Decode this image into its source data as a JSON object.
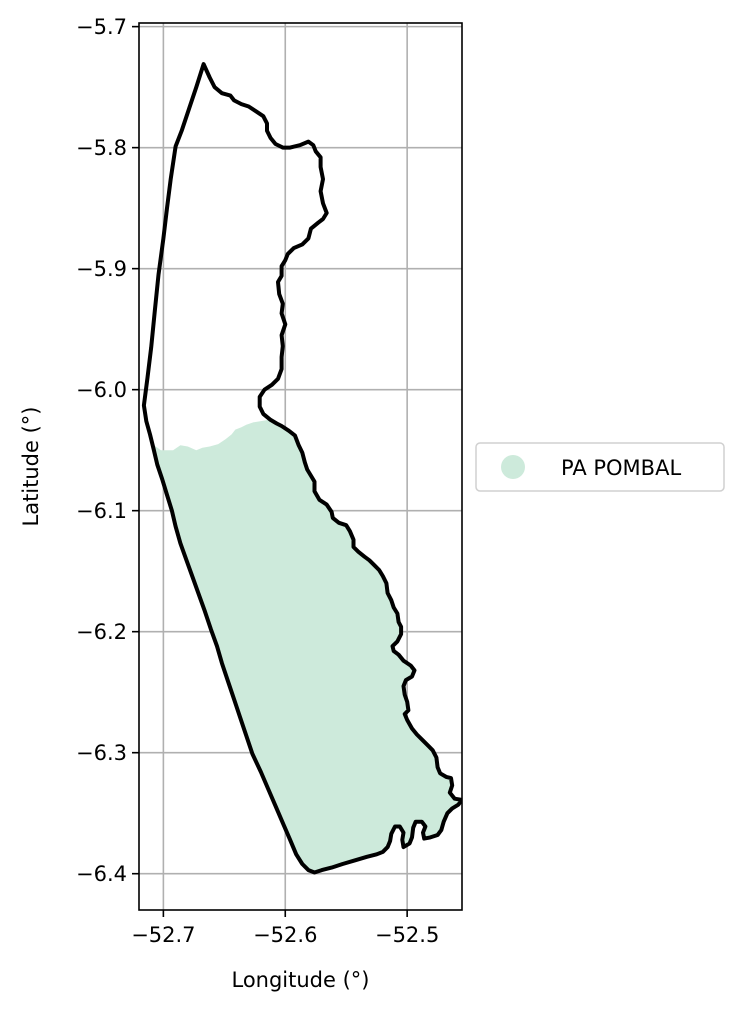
{
  "chart_data": {
    "type": "map",
    "xlabel": "Longitude (°)",
    "ylabel": "Latitude (°)",
    "xlim": [
      -52.72,
      -52.455
    ],
    "ylim": [
      -6.43,
      -5.697
    ],
    "grid": true,
    "x_ticks": [
      {
        "value": -52.7,
        "label": "−52.7"
      },
      {
        "value": -52.6,
        "label": "−52.6"
      },
      {
        "value": -52.5,
        "label": "−52.5"
      }
    ],
    "y_ticks": [
      {
        "value": -5.7,
        "label": "−5.7"
      },
      {
        "value": -5.8,
        "label": "−5.8"
      },
      {
        "value": -5.9,
        "label": "−5.9"
      },
      {
        "value": -6.0,
        "label": "−6.0"
      },
      {
        "value": -6.1,
        "label": "−6.1"
      },
      {
        "value": -6.2,
        "label": "−6.2"
      },
      {
        "value": -6.3,
        "label": "−6.3"
      },
      {
        "value": -6.4,
        "label": "−6.4"
      }
    ],
    "legend": {
      "placement": "center-right-outside",
      "entries": [
        {
          "label": "PA POMBAL",
          "color": "#cdeadb",
          "marker": "circle"
        }
      ]
    },
    "boundary": {
      "color": "#000000",
      "coords": [
        [
          -52.667,
          -5.731
        ],
        [
          -52.662,
          -5.742
        ],
        [
          -52.658,
          -5.75
        ],
        [
          -52.652,
          -5.755
        ],
        [
          -52.645,
          -5.757
        ],
        [
          -52.642,
          -5.761
        ],
        [
          -52.636,
          -5.764
        ],
        [
          -52.63,
          -5.766
        ],
        [
          -52.624,
          -5.77
        ],
        [
          -52.618,
          -5.774
        ],
        [
          -52.615,
          -5.78
        ],
        [
          -52.615,
          -5.786
        ],
        [
          -52.612,
          -5.792
        ],
        [
          -52.608,
          -5.797
        ],
        [
          -52.602,
          -5.8
        ],
        [
          -52.596,
          -5.8
        ],
        [
          -52.588,
          -5.798
        ],
        [
          -52.581,
          -5.795
        ],
        [
          -52.577,
          -5.798
        ],
        [
          -52.575,
          -5.803
        ],
        [
          -52.571,
          -5.808
        ],
        [
          -52.571,
          -5.816
        ],
        [
          -52.569,
          -5.826
        ],
        [
          -52.571,
          -5.836
        ],
        [
          -52.569,
          -5.846
        ],
        [
          -52.566,
          -5.854
        ],
        [
          -52.569,
          -5.859
        ],
        [
          -52.573,
          -5.862
        ],
        [
          -52.579,
          -5.867
        ],
        [
          -52.581,
          -5.875
        ],
        [
          -52.586,
          -5.88
        ],
        [
          -52.593,
          -5.883
        ],
        [
          -52.598,
          -5.888
        ],
        [
          -52.6,
          -5.893
        ],
        [
          -52.603,
          -5.898
        ],
        [
          -52.603,
          -5.906
        ],
        [
          -52.606,
          -5.911
        ],
        [
          -52.605,
          -5.921
        ],
        [
          -52.602,
          -5.929
        ],
        [
          -52.603,
          -5.937
        ],
        [
          -52.6,
          -5.946
        ],
        [
          -52.603,
          -5.955
        ],
        [
          -52.602,
          -5.964
        ],
        [
          -52.603,
          -5.973
        ],
        [
          -52.603,
          -5.983
        ],
        [
          -52.606,
          -5.991
        ],
        [
          -52.611,
          -5.996
        ],
        [
          -52.617,
          -6.0
        ],
        [
          -52.621,
          -6.006
        ],
        [
          -52.621,
          -6.014
        ],
        [
          -52.618,
          -6.02
        ],
        [
          -52.612,
          -6.025
        ],
        [
          -52.607,
          -6.028
        ],
        [
          -52.603,
          -6.03
        ],
        [
          -52.597,
          -6.034
        ],
        [
          -52.592,
          -6.038
        ],
        [
          -52.589,
          -6.046
        ],
        [
          -52.586,
          -6.052
        ],
        [
          -52.584,
          -6.06
        ],
        [
          -52.582,
          -6.066
        ],
        [
          -52.579,
          -6.071
        ],
        [
          -52.576,
          -6.076
        ],
        [
          -52.576,
          -6.084
        ],
        [
          -52.572,
          -6.091
        ],
        [
          -52.566,
          -6.095
        ],
        [
          -52.562,
          -6.101
        ],
        [
          -52.561,
          -6.106
        ],
        [
          -52.556,
          -6.11
        ],
        [
          -52.55,
          -6.112
        ],
        [
          -52.547,
          -6.117
        ],
        [
          -52.544,
          -6.124
        ],
        [
          -52.544,
          -6.13
        ],
        [
          -52.54,
          -6.134
        ],
        [
          -52.535,
          -6.138
        ],
        [
          -52.531,
          -6.141
        ],
        [
          -52.527,
          -6.145
        ],
        [
          -52.523,
          -6.149
        ],
        [
          -52.52,
          -6.154
        ],
        [
          -52.517,
          -6.16
        ],
        [
          -52.516,
          -6.168
        ],
        [
          -52.513,
          -6.174
        ],
        [
          -52.511,
          -6.18
        ],
        [
          -52.508,
          -6.185
        ],
        [
          -52.507,
          -6.192
        ],
        [
          -52.505,
          -6.196
        ],
        [
          -52.505,
          -6.202
        ],
        [
          -52.508,
          -6.208
        ],
        [
          -52.512,
          -6.212
        ],
        [
          -52.511,
          -6.216
        ],
        [
          -52.507,
          -6.219
        ],
        [
          -52.503,
          -6.224
        ],
        [
          -52.497,
          -6.228
        ],
        [
          -52.494,
          -6.232
        ],
        [
          -52.496,
          -6.237
        ],
        [
          -52.501,
          -6.24
        ],
        [
          -52.503,
          -6.245
        ],
        [
          -52.502,
          -6.252
        ],
        [
          -52.5,
          -6.258
        ],
        [
          -52.499,
          -6.265
        ],
        [
          -52.502,
          -6.268
        ],
        [
          -52.5,
          -6.273
        ],
        [
          -52.496,
          -6.28
        ],
        [
          -52.492,
          -6.285
        ],
        [
          -52.487,
          -6.29
        ],
        [
          -52.483,
          -6.294
        ],
        [
          -52.479,
          -6.298
        ],
        [
          -52.476,
          -6.304
        ],
        [
          -52.475,
          -6.312
        ],
        [
          -52.473,
          -6.317
        ],
        [
          -52.468,
          -6.32
        ],
        [
          -52.464,
          -6.321
        ],
        [
          -52.463,
          -6.327
        ],
        [
          -52.465,
          -6.333
        ],
        [
          -52.461,
          -6.338
        ],
        [
          -52.455,
          -6.339
        ],
        [
          -52.458,
          -6.343
        ],
        [
          -52.463,
          -6.346
        ],
        [
          -52.467,
          -6.35
        ],
        [
          -52.47,
          -6.357
        ],
        [
          -52.472,
          -6.364
        ],
        [
          -52.475,
          -6.368
        ],
        [
          -52.481,
          -6.37
        ],
        [
          -52.486,
          -6.371
        ],
        [
          -52.487,
          -6.366
        ],
        [
          -52.485,
          -6.361
        ],
        [
          -52.488,
          -6.357
        ],
        [
          -52.493,
          -6.357
        ],
        [
          -52.495,
          -6.362
        ],
        [
          -52.496,
          -6.37
        ],
        [
          -52.498,
          -6.375
        ],
        [
          -52.503,
          -6.378
        ],
        [
          -52.504,
          -6.372
        ],
        [
          -52.503,
          -6.366
        ],
        [
          -52.506,
          -6.361
        ],
        [
          -52.51,
          -6.361
        ],
        [
          -52.513,
          -6.367
        ],
        [
          -52.514,
          -6.373
        ],
        [
          -52.516,
          -6.378
        ],
        [
          -52.52,
          -6.382
        ],
        [
          -52.525,
          -6.384
        ],
        [
          -52.533,
          -6.386
        ],
        [
          -52.543,
          -6.389
        ],
        [
          -52.553,
          -6.392
        ],
        [
          -52.562,
          -6.395
        ],
        [
          -52.57,
          -6.397
        ],
        [
          -52.576,
          -6.399
        ],
        [
          -52.581,
          -6.397
        ],
        [
          -52.586,
          -6.392
        ],
        [
          -52.591,
          -6.384
        ],
        [
          -52.596,
          -6.372
        ],
        [
          -52.602,
          -6.358
        ],
        [
          -52.608,
          -6.344
        ],
        [
          -52.614,
          -6.33
        ],
        [
          -52.62,
          -6.316
        ],
        [
          -52.627,
          -6.301
        ],
        [
          -52.632,
          -6.286
        ],
        [
          -52.637,
          -6.271
        ],
        [
          -52.642,
          -6.256
        ],
        [
          -52.647,
          -6.241
        ],
        [
          -52.652,
          -6.226
        ],
        [
          -52.656,
          -6.212
        ],
        [
          -52.661,
          -6.198
        ],
        [
          -52.666,
          -6.183
        ],
        [
          -52.671,
          -6.169
        ],
        [
          -52.676,
          -6.155
        ],
        [
          -52.681,
          -6.141
        ],
        [
          -52.686,
          -6.127
        ],
        [
          -52.69,
          -6.113
        ],
        [
          -52.693,
          -6.1
        ],
        [
          -52.697,
          -6.087
        ],
        [
          -52.701,
          -6.074
        ],
        [
          -52.705,
          -6.062
        ],
        [
          -52.708,
          -6.049
        ],
        [
          -52.711,
          -6.037
        ],
        [
          -52.714,
          -6.026
        ],
        [
          -52.716,
          -6.013
        ],
        [
          -52.713,
          -5.99
        ],
        [
          -52.71,
          -5.965
        ],
        [
          -52.707,
          -5.935
        ],
        [
          -52.704,
          -5.905
        ],
        [
          -52.7,
          -5.875
        ],
        [
          -52.697,
          -5.85
        ],
        [
          -52.694,
          -5.826
        ],
        [
          -52.69,
          -5.799
        ],
        [
          -52.685,
          -5.786
        ],
        [
          -52.679,
          -5.768
        ],
        [
          -52.673,
          -5.75
        ],
        [
          -52.667,
          -5.731
        ]
      ]
    },
    "area": {
      "name": "PA POMBAL",
      "color": "#cdeadb",
      "coords": [
        [
          -52.709,
          -6.045
        ],
        [
          -52.702,
          -6.05
        ],
        [
          -52.692,
          -6.05
        ],
        [
          -52.686,
          -6.046
        ],
        [
          -52.68,
          -6.047
        ],
        [
          -52.673,
          -6.05
        ],
        [
          -52.668,
          -6.048
        ],
        [
          -52.662,
          -6.047
        ],
        [
          -52.655,
          -6.045
        ],
        [
          -52.649,
          -6.041
        ],
        [
          -52.644,
          -6.037
        ],
        [
          -52.641,
          -6.033
        ],
        [
          -52.636,
          -6.031
        ],
        [
          -52.632,
          -6.029
        ],
        [
          -52.626,
          -6.027
        ],
        [
          -52.62,
          -6.026
        ],
        [
          -52.614,
          -6.025
        ],
        [
          -52.609,
          -6.027
        ],
        [
          -52.603,
          -6.03
        ],
        [
          -52.597,
          -6.034
        ],
        [
          -52.592,
          -6.038
        ],
        [
          -52.589,
          -6.046
        ],
        [
          -52.586,
          -6.052
        ],
        [
          -52.584,
          -6.06
        ],
        [
          -52.582,
          -6.066
        ],
        [
          -52.579,
          -6.071
        ],
        [
          -52.576,
          -6.076
        ],
        [
          -52.576,
          -6.084
        ],
        [
          -52.572,
          -6.091
        ],
        [
          -52.566,
          -6.095
        ],
        [
          -52.562,
          -6.101
        ],
        [
          -52.561,
          -6.106
        ],
        [
          -52.556,
          -6.11
        ],
        [
          -52.55,
          -6.112
        ],
        [
          -52.547,
          -6.117
        ],
        [
          -52.544,
          -6.124
        ],
        [
          -52.544,
          -6.13
        ],
        [
          -52.54,
          -6.134
        ],
        [
          -52.535,
          -6.138
        ],
        [
          -52.531,
          -6.141
        ],
        [
          -52.527,
          -6.145
        ],
        [
          -52.523,
          -6.149
        ],
        [
          -52.52,
          -6.154
        ],
        [
          -52.517,
          -6.16
        ],
        [
          -52.516,
          -6.168
        ],
        [
          -52.513,
          -6.174
        ],
        [
          -52.511,
          -6.18
        ],
        [
          -52.508,
          -6.185
        ],
        [
          -52.507,
          -6.192
        ],
        [
          -52.505,
          -6.196
        ],
        [
          -52.505,
          -6.202
        ],
        [
          -52.508,
          -6.208
        ],
        [
          -52.512,
          -6.212
        ],
        [
          -52.511,
          -6.216
        ],
        [
          -52.507,
          -6.219
        ],
        [
          -52.503,
          -6.224
        ],
        [
          -52.497,
          -6.228
        ],
        [
          -52.494,
          -6.232
        ],
        [
          -52.496,
          -6.237
        ],
        [
          -52.501,
          -6.24
        ],
        [
          -52.503,
          -6.245
        ],
        [
          -52.502,
          -6.252
        ],
        [
          -52.5,
          -6.258
        ],
        [
          -52.499,
          -6.265
        ],
        [
          -52.502,
          -6.268
        ],
        [
          -52.5,
          -6.273
        ],
        [
          -52.496,
          -6.28
        ],
        [
          -52.492,
          -6.285
        ],
        [
          -52.487,
          -6.29
        ],
        [
          -52.483,
          -6.294
        ],
        [
          -52.479,
          -6.298
        ],
        [
          -52.476,
          -6.304
        ],
        [
          -52.475,
          -6.312
        ],
        [
          -52.473,
          -6.317
        ],
        [
          -52.468,
          -6.32
        ],
        [
          -52.464,
          -6.321
        ],
        [
          -52.463,
          -6.327
        ],
        [
          -52.465,
          -6.333
        ],
        [
          -52.461,
          -6.338
        ],
        [
          -52.455,
          -6.339
        ],
        [
          -52.458,
          -6.343
        ],
        [
          -52.463,
          -6.346
        ],
        [
          -52.467,
          -6.35
        ],
        [
          -52.47,
          -6.357
        ],
        [
          -52.472,
          -6.364
        ],
        [
          -52.475,
          -6.368
        ],
        [
          -52.481,
          -6.37
        ],
        [
          -52.486,
          -6.371
        ],
        [
          -52.487,
          -6.366
        ],
        [
          -52.485,
          -6.361
        ],
        [
          -52.488,
          -6.357
        ],
        [
          -52.493,
          -6.357
        ],
        [
          -52.495,
          -6.362
        ],
        [
          -52.496,
          -6.37
        ],
        [
          -52.498,
          -6.375
        ],
        [
          -52.503,
          -6.378
        ],
        [
          -52.504,
          -6.372
        ],
        [
          -52.503,
          -6.366
        ],
        [
          -52.506,
          -6.361
        ],
        [
          -52.51,
          -6.361
        ],
        [
          -52.513,
          -6.367
        ],
        [
          -52.514,
          -6.373
        ],
        [
          -52.516,
          -6.378
        ],
        [
          -52.52,
          -6.382
        ],
        [
          -52.525,
          -6.384
        ],
        [
          -52.533,
          -6.386
        ],
        [
          -52.543,
          -6.389
        ],
        [
          -52.553,
          -6.392
        ],
        [
          -52.562,
          -6.395
        ],
        [
          -52.57,
          -6.397
        ],
        [
          -52.576,
          -6.399
        ],
        [
          -52.581,
          -6.397
        ],
        [
          -52.586,
          -6.392
        ],
        [
          -52.591,
          -6.384
        ],
        [
          -52.596,
          -6.372
        ],
        [
          -52.602,
          -6.358
        ],
        [
          -52.608,
          -6.344
        ],
        [
          -52.614,
          -6.33
        ],
        [
          -52.62,
          -6.316
        ],
        [
          -52.627,
          -6.301
        ],
        [
          -52.632,
          -6.286
        ],
        [
          -52.637,
          -6.271
        ],
        [
          -52.642,
          -6.256
        ],
        [
          -52.647,
          -6.241
        ],
        [
          -52.652,
          -6.226
        ],
        [
          -52.656,
          -6.212
        ],
        [
          -52.661,
          -6.198
        ],
        [
          -52.666,
          -6.183
        ],
        [
          -52.671,
          -6.169
        ],
        [
          -52.676,
          -6.155
        ],
        [
          -52.681,
          -6.141
        ],
        [
          -52.686,
          -6.127
        ],
        [
          -52.69,
          -6.113
        ],
        [
          -52.693,
          -6.1
        ],
        [
          -52.697,
          -6.087
        ],
        [
          -52.701,
          -6.074
        ],
        [
          -52.705,
          -6.062
        ],
        [
          -52.709,
          -6.045
        ]
      ]
    }
  }
}
